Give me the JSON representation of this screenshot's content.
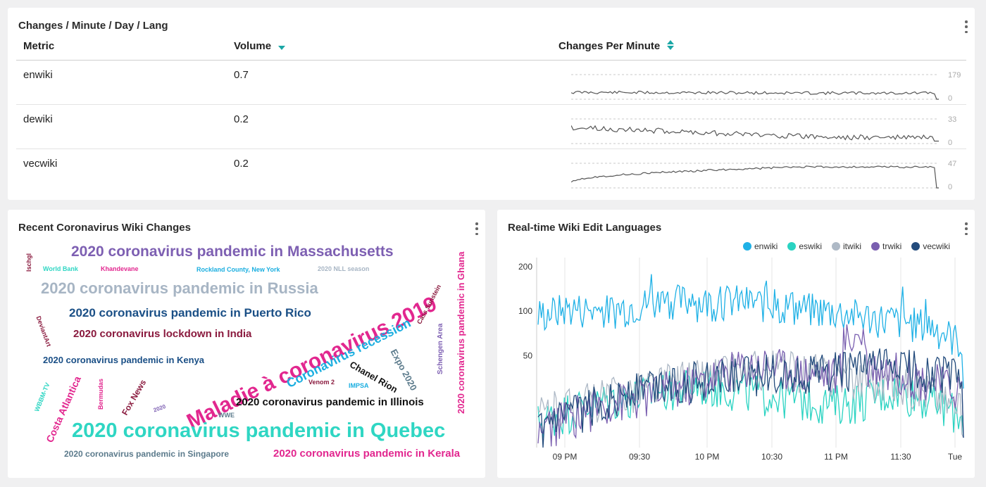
{
  "table_panel": {
    "title": "Changes / Minute / Day / Lang",
    "columns": {
      "metric": "Metric",
      "volume": "Volume",
      "changes": "Changes Per Minute"
    },
    "rows": [
      {
        "metric": "enwiki",
        "volume": "0.7",
        "max": "179",
        "min": "0"
      },
      {
        "metric": "dewiki",
        "volume": "0.2",
        "max": "33",
        "min": "0"
      },
      {
        "metric": "vecwiki",
        "volume": "0.2",
        "max": "47",
        "min": "0"
      }
    ]
  },
  "cloud_panel": {
    "title": "Recent Coronavirus Wiki Changes",
    "words": [
      "2020 coronavirus pandemic in Massachusetts",
      "Ischgl",
      "World Bank",
      "Khandevane",
      "Rockland County, New York",
      "2020 NLL season",
      "2020 coronavirus pandemic in Russia",
      "Maladie à coronavirus 2019",
      "2020 coronavirus pandemic in Ghana",
      "Cass Sunstein",
      "2020 coronavirus pandemic in Puerto Rico",
      "Coronavirus recession",
      "DeviantArt",
      "2020 coronavirus lockdown in India",
      "Schengen Area",
      "Expo 2020",
      "2020 coronavirus pandemic in Kenya",
      "Chanel Rion",
      "Venom 2",
      "IMPSA",
      "WBBM-TV",
      "Bermudas",
      "Fox News",
      "2020",
      "Costa Atlantica",
      "2020 coronavirus pandemic in Illinois",
      "WWE",
      "2020 coronavirus pandemic in Quebec",
      "2020 coronavirus pandemic in Singapore",
      "2020 coronavirus pandemic in Kerala"
    ]
  },
  "chart_panel": {
    "title": "Real-time Wiki Edit Languages"
  },
  "chart_data": {
    "type": "line",
    "y_scale": "log",
    "y_ticks": [
      "200",
      "100",
      "50"
    ],
    "x_ticks": [
      "09 PM",
      "09:30",
      "10 PM",
      "10:30",
      "11 PM",
      "11:30",
      "Tue"
    ],
    "legend_position": "top-right",
    "series": [
      {
        "name": "enwiki",
        "color": "#1fb1e6",
        "base": [
          95,
          105,
          100,
          110,
          120,
          115,
          118,
          112,
          105,
          100,
          92,
          86,
          80,
          60
        ]
      },
      {
        "name": "eswiki",
        "color": "#2ad3c2",
        "base": [
          18,
          22,
          25,
          27,
          30,
          32,
          30,
          28,
          26,
          24,
          26,
          30,
          25,
          20
        ]
      },
      {
        "name": "itwiki",
        "color": "#aeb9c6",
        "base": [
          20,
          24,
          26,
          30,
          34,
          37,
          40,
          42,
          40,
          38,
          36,
          34,
          30,
          20
        ]
      },
      {
        "name": "trwiki",
        "color": "#7a5fb0",
        "base": [
          15,
          20,
          24,
          26,
          30,
          34,
          42,
          45,
          40,
          38,
          45,
          40,
          34,
          30
        ]
      },
      {
        "name": "vecwiki",
        "color": "#234b7c",
        "base": [
          15,
          20,
          25,
          30,
          33,
          35,
          37,
          40,
          38,
          40,
          42,
          44,
          40,
          38
        ]
      }
    ]
  },
  "colors": {
    "word_palette": [
      "#7d5fb2",
      "#a7b5c4",
      "#1a4f86",
      "#8a1a3e",
      "#e2278f",
      "#1aaee0",
      "#2fd6c3",
      "#5c7b8c",
      "#111111"
    ]
  }
}
